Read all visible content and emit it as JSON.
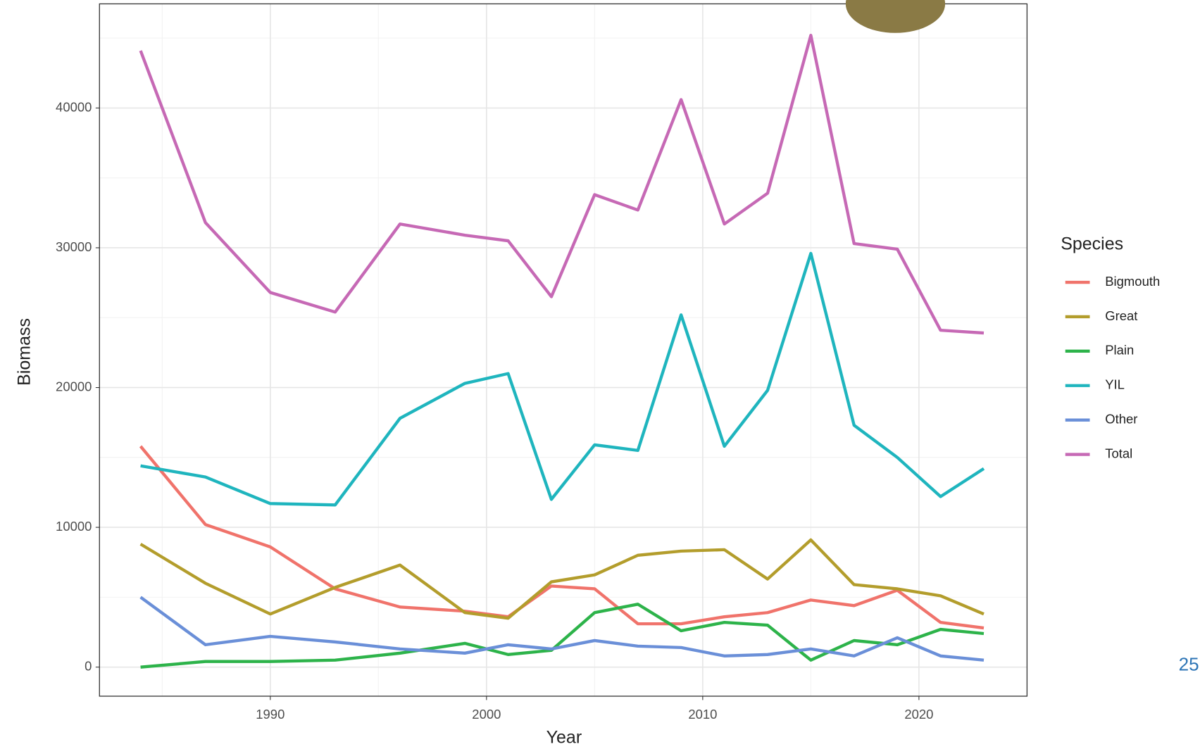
{
  "chart_data": {
    "type": "line",
    "x_label": "Year",
    "y_label": "Biomass",
    "x": [
      1984,
      1987,
      1990,
      1993,
      1996,
      1999,
      2001,
      2003,
      2005,
      2007,
      2009,
      2011,
      2013,
      2015,
      2017,
      2019,
      2021,
      2023
    ],
    "series": [
      {
        "name": "Bigmouth",
        "color": "#F0736B",
        "values": [
          15800,
          10200,
          8600,
          5600,
          4300,
          4000,
          3600,
          5800,
          5600,
          3100,
          3100,
          3600,
          3900,
          4800,
          4400,
          5500,
          3200,
          2800
        ]
      },
      {
        "name": "Great",
        "color": "#B39D2C",
        "values": [
          8800,
          6000,
          3800,
          5700,
          7300,
          3900,
          3500,
          6100,
          6600,
          8000,
          8300,
          8400,
          6300,
          9100,
          5900,
          5600,
          5100,
          3800
        ]
      },
      {
        "name": "Plain",
        "color": "#2DB34A",
        "values": [
          0,
          400,
          400,
          500,
          1000,
          1700,
          900,
          1200,
          3900,
          4500,
          2600,
          3200,
          3000,
          500,
          1900,
          1600,
          2700,
          2400
        ]
      },
      {
        "name": "YIL",
        "color": "#1FB5BE",
        "values": [
          14400,
          13600,
          11700,
          11600,
          17800,
          20300,
          21000,
          12000,
          15900,
          15500,
          25200,
          15800,
          19800,
          29600,
          17300,
          15000,
          12200,
          14200
        ]
      },
      {
        "name": "Other",
        "color": "#6A8FD8",
        "values": [
          5000,
          1600,
          2200,
          1800,
          1300,
          1000,
          1600,
          1300,
          1900,
          1500,
          1400,
          800,
          900,
          1300,
          800,
          2100,
          800,
          500
        ]
      },
      {
        "name": "Total",
        "color": "#C669B5",
        "values": [
          44100,
          31800,
          26800,
          25400,
          31700,
          30900,
          30500,
          26500,
          33800,
          32700,
          40600,
          31700,
          33900,
          45200,
          30300,
          29900,
          24100,
          23900
        ]
      }
    ],
    "xlim": [
      1982.1,
      2025.0
    ],
    "xticks": [
      1990,
      2000,
      2010,
      2020
    ],
    "ylim": [
      -2080,
      47450
    ],
    "yticks": [
      0,
      10000,
      20000,
      30000,
      40000
    ],
    "grid": true,
    "legend_title": "Species",
    "legend_position": "right"
  },
  "page_number": "25"
}
